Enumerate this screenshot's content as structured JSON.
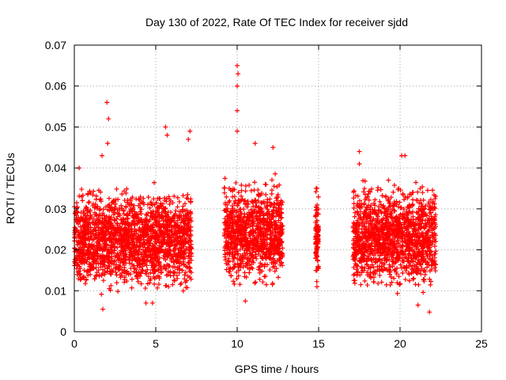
{
  "chart_data": {
    "type": "scatter",
    "title": "Day 130 of 2022, Rate Of TEC Index for receiver sjdd",
    "xlabel": "GPS time / hours",
    "ylabel": "ROTI / TECUs",
    "xlim": [
      0,
      25
    ],
    "ylim": [
      0,
      0.07
    ],
    "x_ticks": [
      0,
      5,
      10,
      15,
      20,
      25
    ],
    "y_ticks": [
      0,
      0.01,
      0.02,
      0.03,
      0.04,
      0.05,
      0.06,
      0.07
    ],
    "x_tick_labels": [
      "0",
      "5",
      "10",
      "15",
      "20",
      "25"
    ],
    "y_tick_labels": [
      "0",
      "0.01",
      "0.02",
      "0.03",
      "0.04",
      "0.05",
      "0.06",
      "0.07"
    ],
    "grid": true,
    "marker": "+",
    "color": "#ff0000",
    "series": [
      {
        "name": "ROTI",
        "segments": [
          {
            "x_range": [
              0.0,
              7.2
            ],
            "typical_range": [
              0.009,
              0.036
            ]
          },
          {
            "x_range": [
              9.2,
              12.8
            ],
            "typical_range": [
              0.01,
              0.038
            ]
          },
          {
            "x_range": [
              14.8,
              15.0
            ],
            "typical_range": [
              0.011,
              0.036
            ]
          },
          {
            "x_range": [
              17.1,
              22.2
            ],
            "typical_range": [
              0.009,
              0.037
            ]
          }
        ],
        "points": [
          {
            "x": 2.0,
            "y": 0.056
          },
          {
            "x": 2.1,
            "y": 0.052
          },
          {
            "x": 2.05,
            "y": 0.046
          },
          {
            "x": 5.6,
            "y": 0.05
          },
          {
            "x": 5.7,
            "y": 0.048
          },
          {
            "x": 7.1,
            "y": 0.049
          },
          {
            "x": 7.0,
            "y": 0.047
          },
          {
            "x": 10.0,
            "y": 0.065
          },
          {
            "x": 10.05,
            "y": 0.063
          },
          {
            "x": 10.0,
            "y": 0.06
          },
          {
            "x": 10.0,
            "y": 0.054
          },
          {
            "x": 10.0,
            "y": 0.049
          },
          {
            "x": 11.1,
            "y": 0.046
          },
          {
            "x": 12.2,
            "y": 0.045
          },
          {
            "x": 17.5,
            "y": 0.044
          },
          {
            "x": 17.5,
            "y": 0.041
          },
          {
            "x": 20.1,
            "y": 0.043
          },
          {
            "x": 20.3,
            "y": 0.043
          },
          {
            "x": 0.3,
            "y": 0.04
          },
          {
            "x": 1.7,
            "y": 0.043
          },
          {
            "x": 1.75,
            "y": 0.0055
          },
          {
            "x": 4.4,
            "y": 0.007
          },
          {
            "x": 4.8,
            "y": 0.007
          },
          {
            "x": 10.5,
            "y": 0.0075
          },
          {
            "x": 21.1,
            "y": 0.0065
          },
          {
            "x": 21.8,
            "y": 0.0048
          },
          {
            "x": 14.9,
            "y": 0.035
          },
          {
            "x": 14.9,
            "y": 0.029
          },
          {
            "x": 14.9,
            "y": 0.025
          },
          {
            "x": 14.9,
            "y": 0.02
          },
          {
            "x": 14.9,
            "y": 0.015
          },
          {
            "x": 14.9,
            "y": 0.011
          }
        ]
      }
    ]
  }
}
